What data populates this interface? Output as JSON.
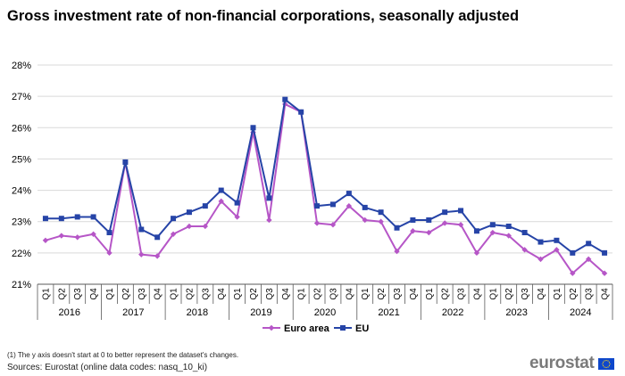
{
  "title": "Gross investment rate of non-financial corporations, seasonally adjusted",
  "footnote": "(1) The y axis doesn't start at 0 to better represent the dataset's changes.",
  "source": "Sources: Eurostat (online data codes: nasq_10_ki)",
  "logo": {
    "text": "eurostat"
  },
  "colors": {
    "euro_area": "#b656c7",
    "eu": "#2644a7",
    "grid": "#d9d9d9",
    "axis": "#595959",
    "flag_blue": "#0e47cb",
    "flag_star": "#ffd617"
  },
  "chart_data": {
    "type": "line",
    "title": "Gross investment rate of non-financial corporations, seasonally adjusted",
    "xlabel": "",
    "ylabel": "",
    "ylim": [
      21,
      28
    ],
    "yticks": [
      21,
      22,
      23,
      24,
      25,
      26,
      27,
      28
    ],
    "ytick_labels": [
      "21%",
      "22%",
      "23%",
      "24%",
      "25%",
      "26%",
      "27%",
      "28%"
    ],
    "years": [
      "2016",
      "2017",
      "2018",
      "2019",
      "2020",
      "2021",
      "2022",
      "2023",
      "2024"
    ],
    "quarters": [
      "Q1",
      "Q2",
      "Q3",
      "Q4"
    ],
    "grid": true,
    "legend_position": "bottom-center",
    "series": [
      {
        "name": "Euro area",
        "marker": "diamond",
        "values": [
          22.4,
          22.55,
          22.5,
          22.6,
          22.0,
          24.9,
          21.95,
          21.9,
          22.6,
          22.85,
          22.85,
          23.65,
          23.15,
          25.85,
          23.05,
          26.75,
          26.5,
          22.95,
          22.9,
          23.5,
          23.05,
          23.0,
          22.05,
          22.7,
          22.65,
          22.95,
          22.9,
          22.0,
          22.65,
          22.55,
          22.1,
          21.8,
          22.1,
          21.35,
          21.8,
          21.35
        ]
      },
      {
        "name": "EU",
        "marker": "square",
        "values": [
          23.1,
          23.1,
          23.15,
          23.15,
          22.65,
          24.9,
          22.75,
          22.5,
          23.1,
          23.3,
          23.5,
          24.0,
          23.6,
          26.0,
          23.75,
          26.9,
          26.5,
          23.5,
          23.55,
          23.9,
          23.45,
          23.3,
          22.8,
          23.05,
          23.05,
          23.3,
          23.35,
          22.7,
          22.9,
          22.85,
          22.65,
          22.35,
          22.4,
          22.0,
          22.3,
          22.0
        ]
      }
    ]
  }
}
